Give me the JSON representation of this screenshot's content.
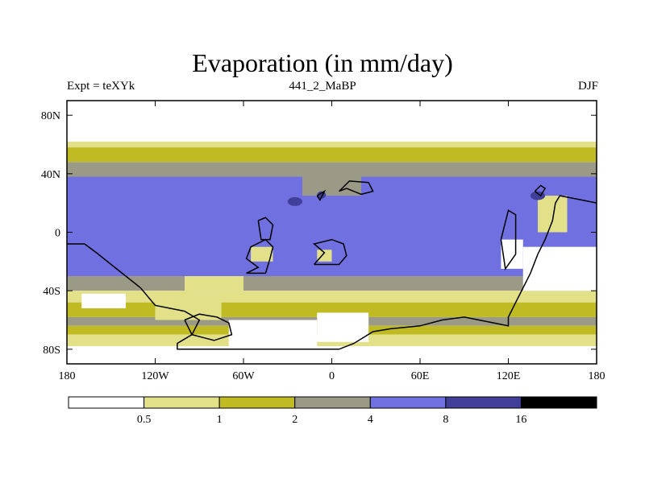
{
  "chart_data": {
    "type": "heatmap",
    "title": "Evaporation (in mm/day)",
    "left_label": "Expt = teXYk",
    "center_label": "441_2_MaBP",
    "right_label": "DJF",
    "xlim": [
      -180,
      180
    ],
    "ylim": [
      -90,
      90
    ],
    "x_ticks": [
      {
        "value": -180,
        "label": "180"
      },
      {
        "value": -120,
        "label": "120W"
      },
      {
        "value": -60,
        "label": "60W"
      },
      {
        "value": 0,
        "label": "0"
      },
      {
        "value": 60,
        "label": "60E"
      },
      {
        "value": 120,
        "label": "120E"
      },
      {
        "value": 180,
        "label": "180"
      }
    ],
    "y_ticks": [
      {
        "value": 80,
        "label": "80N"
      },
      {
        "value": 40,
        "label": "40N"
      },
      {
        "value": 0,
        "label": "0"
      },
      {
        "value": -40,
        "label": "40S"
      },
      {
        "value": -80,
        "label": "80S"
      }
    ],
    "colorbar": {
      "levels": [
        "0.5",
        "1",
        "2",
        "4",
        "8",
        "16"
      ],
      "colors": [
        "#ffffff",
        "#e3e08a",
        "#c0bb22",
        "#9b9a86",
        "#7070e0",
        "#40409a",
        "#000000"
      ]
    },
    "bands": [
      {
        "lat": [
          62,
          90
        ],
        "level": 0
      },
      {
        "lat": [
          58,
          62
        ],
        "level": 1
      },
      {
        "lat": [
          48,
          58
        ],
        "level": 2
      },
      {
        "lat": [
          38,
          48
        ],
        "level": 3
      },
      {
        "lat": [
          -30,
          38
        ],
        "level": 4
      },
      {
        "lat": [
          -40,
          -30
        ],
        "level": 3
      },
      {
        "lat": [
          -48,
          -40
        ],
        "level": 1
      },
      {
        "lat": [
          -58,
          -48
        ],
        "level": 2
      },
      {
        "lat": [
          -64,
          -58
        ],
        "level": 3
      },
      {
        "lat": [
          -70,
          -64
        ],
        "level": 2
      },
      {
        "lat": [
          -78,
          -70
        ],
        "level": 1
      },
      {
        "lat": [
          -90,
          -78
        ],
        "level": 0
      }
    ],
    "patches": [
      {
        "lon": [
          -10,
          25
        ],
        "lat": [
          -75,
          -55
        ],
        "level": 0
      },
      {
        "lon": [
          -70,
          -10
        ],
        "lat": [
          -78,
          -60
        ],
        "level": 0
      },
      {
        "lon": [
          -120,
          -75
        ],
        "lat": [
          -60,
          -40
        ],
        "level": 1
      },
      {
        "lon": [
          -170,
          -140
        ],
        "lat": [
          -52,
          -42
        ],
        "level": 0
      },
      {
        "lon": [
          130,
          180
        ],
        "lat": [
          -40,
          -10
        ],
        "level": 0
      },
      {
        "lon": [
          115,
          130
        ],
        "lat": [
          -25,
          -5
        ],
        "level": 0
      },
      {
        "lon": [
          140,
          160
        ],
        "lat": [
          0,
          25
        ],
        "level": 1
      },
      {
        "lon": [
          -100,
          -60
        ],
        "lat": [
          -40,
          -30
        ],
        "level": 1
      },
      {
        "lon": [
          -20,
          20
        ],
        "lat": [
          25,
          38
        ],
        "level": 3
      },
      {
        "lon": [
          -10,
          0
        ],
        "lat": [
          -20,
          -12
        ],
        "level": 1
      },
      {
        "lon": [
          -55,
          -40
        ],
        "lat": [
          -20,
          -10
        ],
        "level": 1
      }
    ],
    "blobs": [
      {
        "lon": [
          -30,
          -20
        ],
        "lat": [
          18,
          24
        ],
        "level": 5
      },
      {
        "lon": [
          -10,
          -4
        ],
        "lat": [
          23,
          28
        ],
        "level": 5
      },
      {
        "lon": [
          135,
          145
        ],
        "lat": [
          22,
          28
        ],
        "level": 5
      }
    ],
    "land_outlines": [
      [
        [
          -180,
          -8
        ],
        [
          -168,
          -8
        ],
        [
          -160,
          -14
        ],
        [
          -150,
          -22
        ],
        [
          -140,
          -30
        ],
        [
          -130,
          -38
        ],
        [
          -120,
          -50
        ],
        [
          -100,
          -54
        ],
        [
          -90,
          -60
        ],
        [
          -95,
          -70
        ],
        [
          -105,
          -76
        ],
        [
          -105,
          -80
        ],
        [
          -80,
          -80
        ],
        [
          -60,
          -80
        ],
        [
          -30,
          -80
        ],
        [
          -10,
          -80
        ],
        [
          5,
          -80
        ],
        [
          15,
          -76
        ],
        [
          28,
          -68
        ],
        [
          40,
          -66
        ],
        [
          60,
          -64
        ],
        [
          75,
          -60
        ],
        [
          90,
          -58
        ],
        [
          100,
          -60
        ],
        [
          110,
          -62
        ],
        [
          120,
          -64
        ],
        [
          120,
          -58
        ],
        [
          125,
          -48
        ],
        [
          130,
          -38
        ],
        [
          135,
          -28
        ],
        [
          140,
          -15
        ],
        [
          145,
          -5
        ],
        [
          150,
          8
        ],
        [
          152,
          20
        ],
        [
          155,
          25
        ],
        [
          170,
          22
        ],
        [
          180,
          20
        ]
      ],
      [
        [
          -58,
          -28
        ],
        [
          -45,
          -28
        ],
        [
          -42,
          -18
        ],
        [
          -40,
          -10
        ],
        [
          -45,
          -5
        ],
        [
          -55,
          -10
        ],
        [
          -58,
          -18
        ],
        [
          -50,
          -24
        ],
        [
          -58,
          -28
        ]
      ],
      [
        [
          -12,
          -22
        ],
        [
          5,
          -22
        ],
        [
          10,
          -16
        ],
        [
          8,
          -8
        ],
        [
          0,
          -5
        ],
        [
          -12,
          -8
        ],
        [
          -5,
          -14
        ],
        [
          -12,
          -22
        ]
      ],
      [
        [
          5,
          28
        ],
        [
          12,
          35
        ],
        [
          25,
          34
        ],
        [
          28,
          28
        ],
        [
          20,
          26
        ],
        [
          10,
          30
        ],
        [
          5,
          28
        ]
      ],
      [
        [
          -50,
          8
        ],
        [
          -45,
          10
        ],
        [
          -40,
          5
        ],
        [
          -42,
          -5
        ],
        [
          -48,
          -5
        ],
        [
          -50,
          8
        ]
      ],
      [
        [
          115,
          -5
        ],
        [
          120,
          15
        ],
        [
          125,
          12
        ],
        [
          125,
          -15
        ],
        [
          118,
          -25
        ],
        [
          115,
          -5
        ]
      ],
      [
        [
          -100,
          -60
        ],
        [
          -90,
          -56
        ],
        [
          -78,
          -58
        ],
        [
          -70,
          -62
        ],
        [
          -68,
          -70
        ],
        [
          -80,
          -74
        ],
        [
          -95,
          -70
        ],
        [
          -100,
          -60
        ]
      ],
      [
        [
          138,
          28
        ],
        [
          142,
          32
        ],
        [
          145,
          30
        ],
        [
          142,
          25
        ],
        [
          138,
          28
        ]
      ],
      [
        [
          -10,
          25
        ],
        [
          -5,
          28
        ],
        [
          -8,
          22
        ],
        [
          -10,
          25
        ]
      ]
    ]
  }
}
